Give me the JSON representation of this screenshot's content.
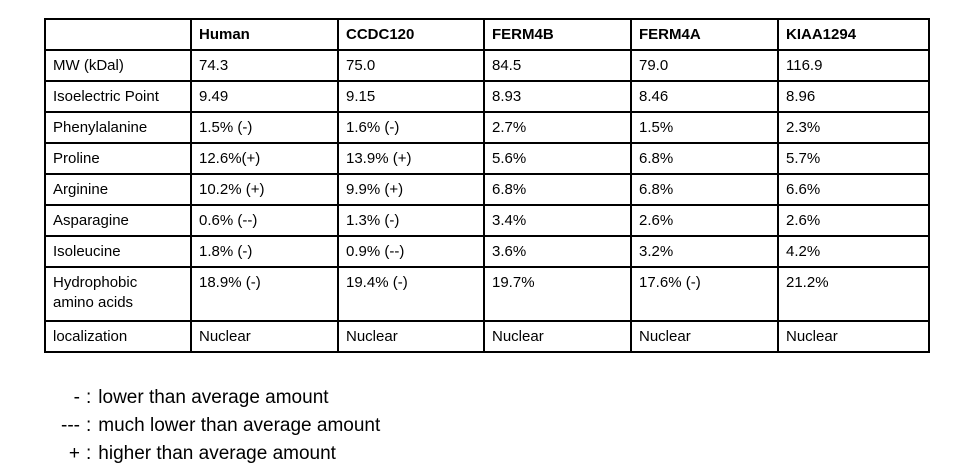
{
  "table": {
    "columns": [
      "",
      "Human",
      "CCDC120",
      "FERM4B",
      "FERM4A",
      "KIAA1294"
    ],
    "rows": [
      {
        "label": "MW (kDal)",
        "cells": [
          "74.3",
          "75.0",
          "84.5",
          "79.0",
          "116.9"
        ]
      },
      {
        "label": "Isoelectric Point",
        "cells": [
          "9.49",
          "9.15",
          "8.93",
          "8.46",
          "8.96"
        ]
      },
      {
        "label": "Phenylalanine",
        "cells": [
          "1.5% (-)",
          "1.6% (-)",
          "2.7%",
          "1.5%",
          "2.3%"
        ]
      },
      {
        "label": "Proline",
        "cells": [
          "12.6%(+)",
          "13.9% (+)",
          "5.6%",
          "6.8%",
          "5.7%"
        ]
      },
      {
        "label": "Arginine",
        "cells": [
          "10.2% (+)",
          "9.9% (+)",
          "6.8%",
          "6.8%",
          "6.6%"
        ]
      },
      {
        "label": "Asparagine",
        "cells": [
          "0.6% (--)",
          "1.3% (-)",
          "3.4%",
          "2.6%",
          "2.6%"
        ]
      },
      {
        "label": "Isoleucine",
        "cells": [
          "1.8% (-)",
          "0.9% (--)",
          "3.6%",
          "3.2%",
          "4.2%"
        ]
      },
      {
        "label": "Hydrophobic amino acids",
        "cells": [
          "18.9% (-)",
          "19.4% (-)",
          "19.7%",
          "17.6% (-)",
          "21.2%"
        ]
      },
      {
        "label": "localization",
        "cells": [
          "Nuclear",
          "Nuclear",
          "Nuclear",
          "Nuclear",
          "Nuclear"
        ]
      }
    ]
  },
  "legend": {
    "separator": ":",
    "items": [
      {
        "symbol": "-",
        "text": "lower than average amount"
      },
      {
        "symbol": "---",
        "text": "much lower than average amount"
      },
      {
        "symbol": "+",
        "text": "higher than average amount"
      }
    ]
  }
}
